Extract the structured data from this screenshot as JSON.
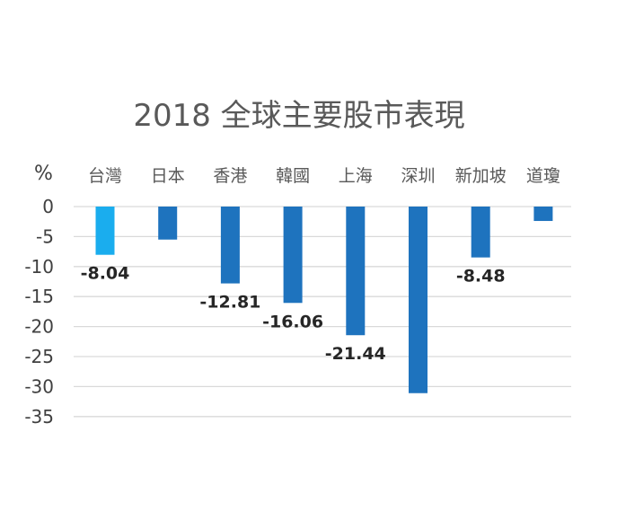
{
  "chart_data": {
    "type": "bar",
    "title": "2018 全球主要股市表現",
    "unit_label": "%",
    "categories": [
      "台灣",
      "日本",
      "香港",
      "韓國",
      "上海",
      "深圳",
      "新加坡",
      "道瓊"
    ],
    "values": [
      -8.04,
      -5.5,
      -12.81,
      -16.06,
      -21.44,
      -31.1,
      -8.48,
      -2.4
    ],
    "data_labels": [
      "-8.04",
      "",
      "-12.81",
      "-16.06",
      "-21.44",
      "",
      "-8.48",
      ""
    ],
    "yticks": [
      "0",
      "-5",
      "-10",
      "-15",
      "-20",
      "-25",
      "-30",
      "-35"
    ],
    "ylim": [
      -35,
      0
    ],
    "grid": true,
    "category_axis_position": "top",
    "colors": {
      "highlight": "#1aadee",
      "default": "#1e73be",
      "gridline": "#d9d9d9"
    },
    "highlight_index": 0
  }
}
